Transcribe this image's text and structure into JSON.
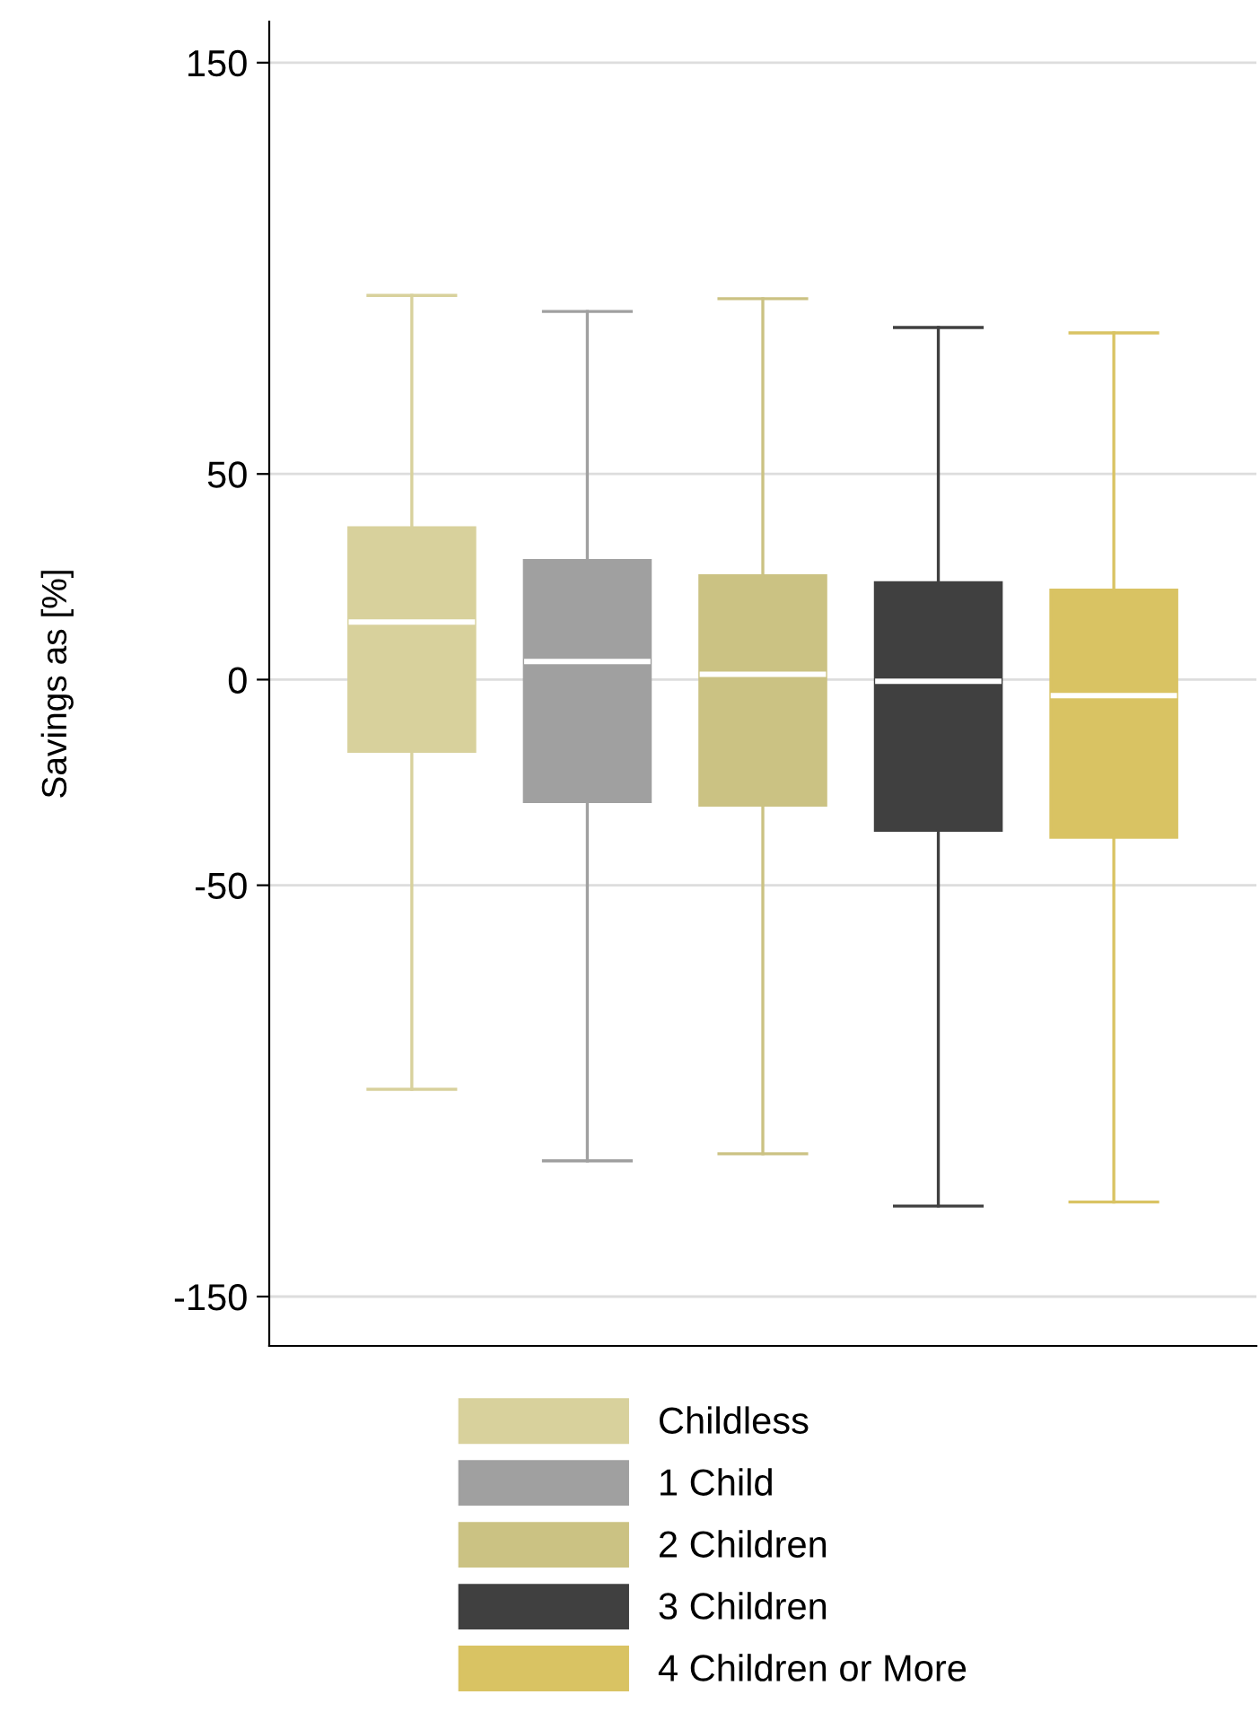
{
  "chart_data": {
    "type": "box",
    "ylabel": "Savings as [%]",
    "categories": [
      null
    ],
    "series": [
      {
        "name": "Childless",
        "color": "#d8d19c",
        "boxes": [
          {
            "low": -99.6,
            "q1": -17.5,
            "median": 14,
            "q3": 37,
            "high": 93.4
          }
        ]
      },
      {
        "name": "1 Child",
        "color": "#a0a0a0",
        "boxes": [
          {
            "low": -117,
            "q1": -29.7,
            "median": 4.4,
            "q3": 29,
            "high": 89.5
          }
        ]
      },
      {
        "name": "2 Children",
        "color": "#cbc283",
        "boxes": [
          {
            "low": -115.3,
            "q1": -30.6,
            "median": 1.3,
            "q3": 25.3,
            "high": 92.6
          }
        ]
      },
      {
        "name": "3 Children",
        "color": "#404040",
        "boxes": [
          {
            "low": -128,
            "q1": -36.7,
            "median": -0.4,
            "q3": 23.6,
            "high": 85.6
          }
        ]
      },
      {
        "name": "4 Children or More",
        "color": "#d9c363",
        "boxes": [
          {
            "low": -127,
            "q1": -38.4,
            "median": -3.9,
            "q3": 21.8,
            "high": 84.3
          }
        ]
      }
    ],
    "ylim": [
      -162,
      160
    ],
    "yticks": [
      150,
      50,
      0,
      -50,
      -150
    ],
    "grid": "y",
    "legend": "bottom"
  }
}
